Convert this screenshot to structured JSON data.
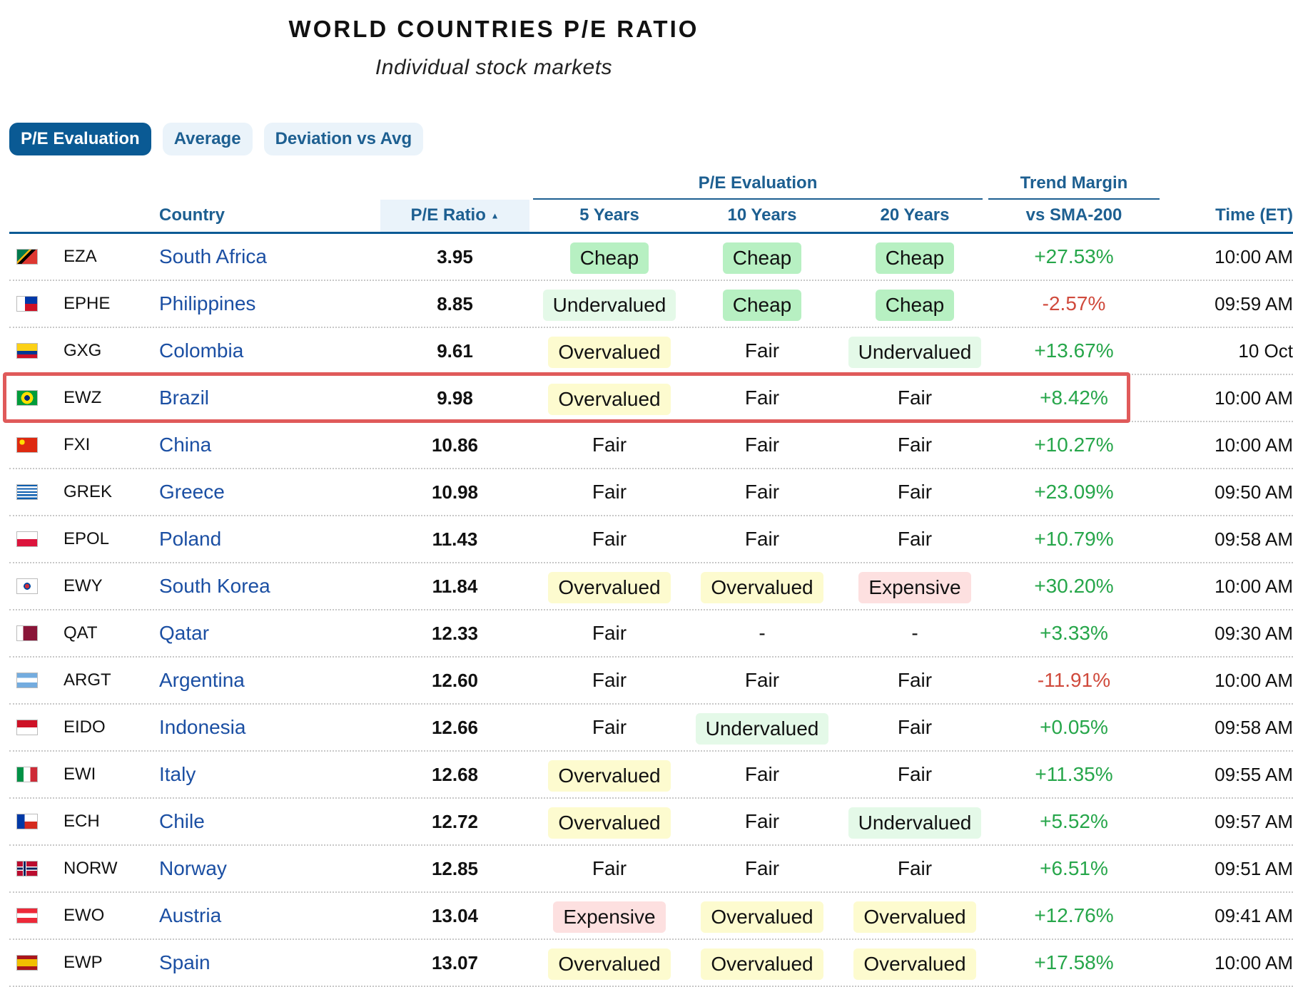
{
  "title": "WORLD COUNTRIES P/E RATIO",
  "subtitle": "Individual stock markets",
  "tabs": [
    {
      "label": "P/E Evaluation",
      "active": true
    },
    {
      "label": "Average",
      "active": false
    },
    {
      "label": "Deviation vs Avg",
      "active": false
    }
  ],
  "group_headers": {
    "pe_evaluation": "P/E Evaluation",
    "trend_margin": "Trend Margin"
  },
  "columns": {
    "country": "Country",
    "pe_ratio": "P/E Ratio",
    "sort_indicator": "▲",
    "y5": "5 Years",
    "y10": "10 Years",
    "y20": "20 Years",
    "trend": "vs SMA-200",
    "time": "Time (ET)"
  },
  "colors": {
    "accent": "#0a5a94",
    "link": "#1b4fa3",
    "positive": "#26a64a",
    "negative": "#d04a3c",
    "highlight": "#e05a5a",
    "cheap": "#b7f0c2",
    "undervalued": "#e4f9e8",
    "overvalued": "#fdfbcf",
    "expensive": "#fde0e0"
  },
  "highlighted_ticker": "EWZ",
  "rows": [
    {
      "flag": "south-africa-flag-icon",
      "ticker": "EZA",
      "country": "South Africa",
      "pe": "3.95",
      "y5": "Cheap",
      "y10": "Cheap",
      "y20": "Cheap",
      "trend": "+27.53%",
      "time": "10:00 AM"
    },
    {
      "flag": "philippines-flag-icon",
      "ticker": "EPHE",
      "country": "Philippines",
      "pe": "8.85",
      "y5": "Undervalued",
      "y10": "Cheap",
      "y20": "Cheap",
      "trend": "-2.57%",
      "time": "09:59 AM"
    },
    {
      "flag": "colombia-flag-icon",
      "ticker": "GXG",
      "country": "Colombia",
      "pe": "9.61",
      "y5": "Overvalued",
      "y10": "Fair",
      "y20": "Undervalued",
      "trend": "+13.67%",
      "time": "10 Oct"
    },
    {
      "flag": "brazil-flag-icon",
      "ticker": "EWZ",
      "country": "Brazil",
      "pe": "9.98",
      "y5": "Overvalued",
      "y10": "Fair",
      "y20": "Fair",
      "trend": "+8.42%",
      "time": "10:00 AM"
    },
    {
      "flag": "china-flag-icon",
      "ticker": "FXI",
      "country": "China",
      "pe": "10.86",
      "y5": "Fair",
      "y10": "Fair",
      "y20": "Fair",
      "trend": "+10.27%",
      "time": "10:00 AM"
    },
    {
      "flag": "greece-flag-icon",
      "ticker": "GREK",
      "country": "Greece",
      "pe": "10.98",
      "y5": "Fair",
      "y10": "Fair",
      "y20": "Fair",
      "trend": "+23.09%",
      "time": "09:50 AM"
    },
    {
      "flag": "poland-flag-icon",
      "ticker": "EPOL",
      "country": "Poland",
      "pe": "11.43",
      "y5": "Fair",
      "y10": "Fair",
      "y20": "Fair",
      "trend": "+10.79%",
      "time": "09:58 AM"
    },
    {
      "flag": "south-korea-flag-icon",
      "ticker": "EWY",
      "country": "South Korea",
      "pe": "11.84",
      "y5": "Overvalued",
      "y10": "Overvalued",
      "y20": "Expensive",
      "trend": "+30.20%",
      "time": "10:00 AM"
    },
    {
      "flag": "qatar-flag-icon",
      "ticker": "QAT",
      "country": "Qatar",
      "pe": "12.33",
      "y5": "Fair",
      "y10": "-",
      "y20": "-",
      "trend": "+3.33%",
      "time": "09:30 AM"
    },
    {
      "flag": "argentina-flag-icon",
      "ticker": "ARGT",
      "country": "Argentina",
      "pe": "12.60",
      "y5": "Fair",
      "y10": "Fair",
      "y20": "Fair",
      "trend": "-11.91%",
      "time": "10:00 AM"
    },
    {
      "flag": "indonesia-flag-icon",
      "ticker": "EIDO",
      "country": "Indonesia",
      "pe": "12.66",
      "y5": "Fair",
      "y10": "Undervalued",
      "y20": "Fair",
      "trend": "+0.05%",
      "time": "09:58 AM"
    },
    {
      "flag": "italy-flag-icon",
      "ticker": "EWI",
      "country": "Italy",
      "pe": "12.68",
      "y5": "Overvalued",
      "y10": "Fair",
      "y20": "Fair",
      "trend": "+11.35%",
      "time": "09:55 AM"
    },
    {
      "flag": "chile-flag-icon",
      "ticker": "ECH",
      "country": "Chile",
      "pe": "12.72",
      "y5": "Overvalued",
      "y10": "Fair",
      "y20": "Undervalued",
      "trend": "+5.52%",
      "time": "09:57 AM"
    },
    {
      "flag": "norway-flag-icon",
      "ticker": "NORW",
      "country": "Norway",
      "pe": "12.85",
      "y5": "Fair",
      "y10": "Fair",
      "y20": "Fair",
      "trend": "+6.51%",
      "time": "09:51 AM"
    },
    {
      "flag": "austria-flag-icon",
      "ticker": "EWO",
      "country": "Austria",
      "pe": "13.04",
      "y5": "Expensive",
      "y10": "Overvalued",
      "y20": "Overvalued",
      "trend": "+12.76%",
      "time": "09:41 AM"
    },
    {
      "flag": "spain-flag-icon",
      "ticker": "EWP",
      "country": "Spain",
      "pe": "13.07",
      "y5": "Overvalued",
      "y10": "Overvalued",
      "y20": "Overvalued",
      "trend": "+17.58%",
      "time": "10:00 AM"
    }
  ]
}
